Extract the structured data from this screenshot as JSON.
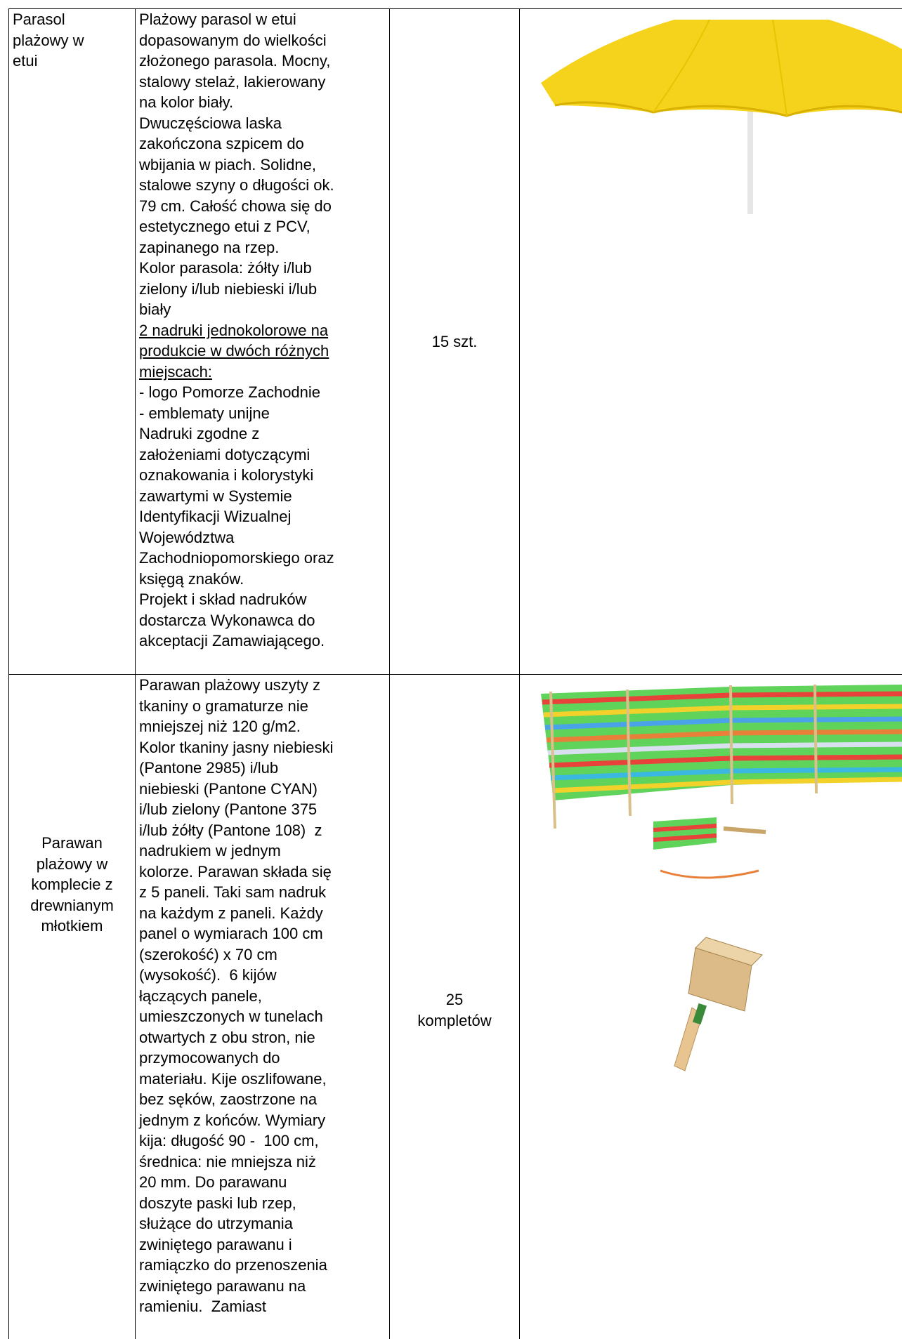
{
  "table": {
    "rows": [
      {
        "name": [
          "Parasol",
          "plażowy w",
          "etui"
        ],
        "description": {
          "before": [
            "Plażowy parasol w etui",
            "dopasowanym do wielkości",
            "złożonego parasola. Mocny,",
            "stalowy stelaż, lakierowany",
            "na kolor biały.",
            "Dwuczęściowa laska",
            "zakończona szpicem do",
            "wbijania w piach. Solidne,",
            "stalowe szyny o długości ok.",
            "79 cm. Całość chowa się do",
            "estetycznego etui z PCV,",
            "zapinanego na rzep.",
            "Kolor parasola: żółty i/lub",
            "zielony i/lub niebieski i/lub",
            "biały"
          ],
          "underlined": [
            "2 nadruki jednokolorowe na",
            "produkcie w dwóch różnych",
            "miejscach:"
          ],
          "after": [
            "- logo Pomorze Zachodnie",
            "- emblematy unijne",
            "Nadruki zgodne z",
            "założeniami dotyczącymi",
            "oznakowania i kolorystyki",
            "zawartymi w Systemie",
            "Identyfikacji Wizualnej",
            "Województwa",
            "Zachodniopomorskiego oraz",
            "księgą znaków.",
            "Projekt i skład nadruków",
            "dostarcza Wykonawca do",
            "akceptacji Zamawiającego."
          ]
        },
        "quantity": [
          "15 szt."
        ]
      },
      {
        "name": [
          "Parawan",
          "plażowy w",
          "komplecie z",
          "drewnianym",
          "młotkiem"
        ],
        "description": {
          "before": [
            "Parawan plażowy uszyty z",
            "tkaniny o gramaturze nie",
            "mniejszej niż 120 g/m2.",
            "Kolor tkaniny jasny niebieski",
            "(Pantone 2985) i/lub",
            "niebieski (Pantone CYAN)",
            "i/lub zielony (Pantone 375",
            "i/lub żółty (Pantone 108)  z",
            "nadrukiem w jednym",
            "kolorze. Parawan składa się",
            "z 5 paneli. Taki sam nadruk",
            "na każdym z paneli. Każdy",
            "panel o wymiarach 100 cm",
            "(szerokość) x 70 cm",
            "(wysokość).  6 kijów",
            "łączących panele,",
            "umieszczonych w tunelach",
            "otwartych z obu stron, nie",
            "przymocowanych do",
            "materiału. Kije oszlifowane,",
            "bez sęków, zaostrzone na",
            "jednym z końców. Wymiary",
            "kija: długość 90 -  100 cm,",
            "średnica: nie mniejsza niż",
            "20 mm. Do parawanu",
            "doszyte paski lub rzep,",
            "służące do utrzymania",
            "zwiniętego parawanu i",
            "ramiączko do przenoszenia",
            "zwiniętego parawanu na",
            "ramieniu.  Zamiast"
          ]
        },
        "quantity": [
          "25",
          "kompletów"
        ]
      }
    ]
  }
}
